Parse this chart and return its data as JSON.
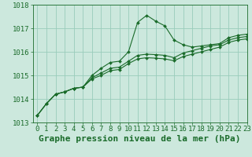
{
  "title": "Graphe pression niveau de la mer (hPa)",
  "bg_color": "#cce8dd",
  "grid_color": "#99ccbb",
  "line_color": "#1a6b2a",
  "marker_color": "#1a6b2a",
  "xlim": [
    -0.5,
    23
  ],
  "ylim": [
    1013,
    1018
  ],
  "xticks": [
    0,
    1,
    2,
    3,
    4,
    5,
    6,
    7,
    8,
    9,
    10,
    11,
    12,
    13,
    14,
    15,
    16,
    17,
    18,
    19,
    20,
    21,
    22,
    23
  ],
  "yticks": [
    1013,
    1014,
    1015,
    1016,
    1017,
    1018
  ],
  "series": [
    [
      1013.3,
      1013.8,
      1014.2,
      1014.3,
      1014.45,
      1014.5,
      1015.0,
      1015.3,
      1015.55,
      1015.6,
      1016.0,
      1017.25,
      1017.55,
      1017.3,
      1017.1,
      1016.5,
      1016.3,
      1016.2,
      1016.25,
      1016.3,
      1016.35,
      1016.6,
      1016.7,
      1016.75
    ],
    [
      1013.3,
      1013.8,
      1014.2,
      1014.3,
      1014.45,
      1014.5,
      1014.9,
      1015.1,
      1015.3,
      1015.35,
      1015.6,
      1015.85,
      1015.9,
      1015.88,
      1015.85,
      1015.75,
      1015.95,
      1016.05,
      1016.15,
      1016.25,
      1016.3,
      1016.5,
      1016.6,
      1016.65
    ],
    [
      1013.3,
      1013.8,
      1014.2,
      1014.3,
      1014.45,
      1014.5,
      1014.85,
      1015.0,
      1015.2,
      1015.25,
      1015.5,
      1015.7,
      1015.75,
      1015.73,
      1015.7,
      1015.62,
      1015.8,
      1015.9,
      1016.0,
      1016.1,
      1016.2,
      1016.4,
      1016.5,
      1016.55
    ]
  ],
  "title_fontsize": 8,
  "tick_fontsize": 6.5
}
